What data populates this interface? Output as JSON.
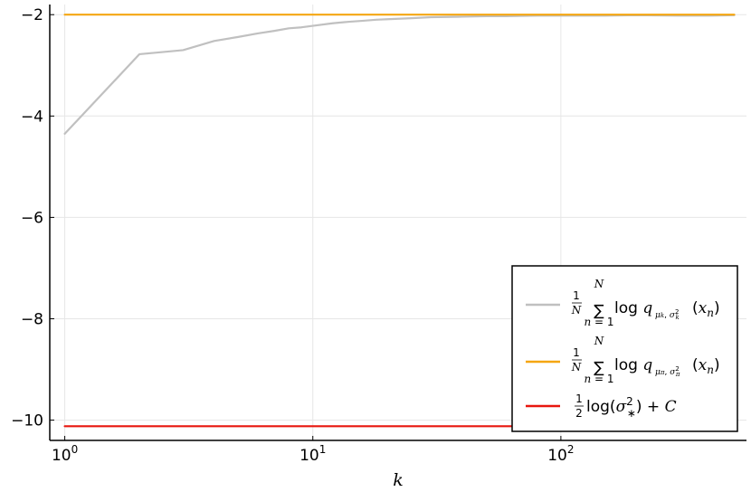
{
  "chart_data": {
    "type": "line",
    "xscale": "log",
    "xlabel": "k",
    "ylabel": "",
    "xlim": [
      0.87,
      560
    ],
    "ylim": [
      -10.4,
      -1.8
    ],
    "grid": true,
    "legend_position": "bottom-right",
    "x_ticks": [
      1,
      10,
      100
    ],
    "x_tick_labels": [
      {
        "base": "10",
        "exp": "0"
      },
      {
        "base": "10",
        "exp": "1"
      },
      {
        "base": "10",
        "exp": "2"
      }
    ],
    "y_ticks": [
      -10,
      -8,
      -6,
      -4,
      -2
    ],
    "y_tick_labels": [
      "−10",
      "−8",
      "−6",
      "−4",
      "−2"
    ],
    "series": [
      {
        "name": "1/N Σ_{n=1}^{N} log q_{μ_k, σ_k²}(x_n)",
        "color": "#c0c0c0",
        "x": [
          1,
          2,
          3,
          4,
          5,
          6,
          7,
          8,
          9,
          10,
          12,
          14,
          16,
          18,
          20,
          25,
          30,
          40,
          50,
          60,
          80,
          100,
          150,
          200,
          300,
          400,
          500
        ],
        "y": [
          -4.35,
          -2.78,
          -2.7,
          -2.52,
          -2.44,
          -2.37,
          -2.32,
          -2.27,
          -2.25,
          -2.22,
          -2.17,
          -2.14,
          -2.12,
          -2.1,
          -2.09,
          -2.07,
          -2.05,
          -2.04,
          -2.03,
          -2.03,
          -2.02,
          -2.02,
          -2.02,
          -2.01,
          -2.02,
          -2.02,
          -2.01
        ]
      },
      {
        "name": "1/N Σ_{n=1}^{N} log q_{μ_π, σ_π²}(x_n)",
        "color": "#f5a612",
        "x": [
          1,
          500
        ],
        "y": [
          -2.0,
          -2.0
        ]
      },
      {
        "name": "1/2 log(σ_*²) + C",
        "color": "#e8160e",
        "x": [
          1,
          500
        ],
        "y": [
          -10.12,
          -10.12
        ]
      }
    ]
  }
}
